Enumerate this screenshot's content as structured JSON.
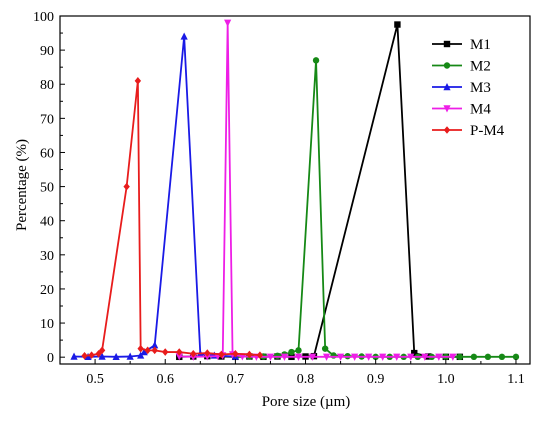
{
  "chart_data": {
    "type": "line",
    "xlabel": "Pore size (µm)",
    "ylabel": "Percentage (%)",
    "xlim": [
      0.45,
      1.12
    ],
    "ylim": [
      -2,
      100
    ],
    "xticks": [
      "0.5",
      "0.6",
      "0.7",
      "0.8",
      "0.9",
      "1.0",
      "1.1"
    ],
    "xtick_values": [
      0.5,
      0.6,
      0.7,
      0.8,
      0.9,
      1.0,
      1.1
    ],
    "yticks": [
      "0",
      "10",
      "20",
      "30",
      "40",
      "50",
      "60",
      "70",
      "80",
      "90",
      "100"
    ],
    "ytick_values": [
      0,
      10,
      20,
      30,
      40,
      50,
      60,
      70,
      80,
      90,
      100
    ],
    "grid": false,
    "legend_position": "top-right",
    "series": [
      {
        "name": "M1",
        "color": "#000000",
        "marker": "square",
        "x": [
          0.62,
          0.64,
          0.66,
          0.68,
          0.7,
          0.72,
          0.74,
          0.76,
          0.78,
          0.8,
          0.812,
          0.931,
          0.955,
          0.975,
          1.0,
          1.02
        ],
        "y": [
          0.1,
          0.2,
          0.3,
          0.2,
          0.1,
          0.2,
          0.1,
          0.2,
          0.1,
          0.2,
          0.3,
          97.5,
          1.2,
          0.2,
          0.1,
          0.1
        ]
      },
      {
        "name": "M2",
        "color": "#168916",
        "marker": "circle",
        "x": [
          0.7,
          0.72,
          0.74,
          0.76,
          0.77,
          0.78,
          0.79,
          0.815,
          0.828,
          0.84,
          0.86,
          0.88,
          0.9,
          0.92,
          0.94,
          0.96,
          0.98,
          1.0,
          1.02,
          1.04,
          1.06,
          1.08,
          1.1
        ],
        "y": [
          0.1,
          0.2,
          0.2,
          0.4,
          0.8,
          1.5,
          2.0,
          87.0,
          2.5,
          0.5,
          0.3,
          0.2,
          0.1,
          0.1,
          0.1,
          0.1,
          0.1,
          0.1,
          0.1,
          0.1,
          0.1,
          0.1,
          0.1
        ]
      },
      {
        "name": "M3",
        "color": "#1a1ae6",
        "marker": "triangle-up",
        "x": [
          0.47,
          0.49,
          0.51,
          0.53,
          0.55,
          0.565,
          0.57,
          0.585,
          0.627,
          0.65,
          0.67,
          0.7
        ],
        "y": [
          0.2,
          0.1,
          0.2,
          0.1,
          0.2,
          0.5,
          1.5,
          3.5,
          94.0,
          1.0,
          0.5,
          0.2
        ]
      },
      {
        "name": "M4",
        "color": "#ee1ee6",
        "marker": "triangle-down",
        "x": [
          0.62,
          0.64,
          0.66,
          0.675,
          0.682,
          0.689,
          0.696,
          0.71,
          0.73,
          0.75,
          0.77,
          0.79,
          0.81,
          0.83,
          0.85,
          0.87,
          0.89,
          0.91,
          0.93,
          0.95,
          0.97,
          0.99,
          1.01
        ],
        "y": [
          0.2,
          0.1,
          0.2,
          0.3,
          0.5,
          98.0,
          0.8,
          0.2,
          0.1,
          0.1,
          0.1,
          0.1,
          0.1,
          0.1,
          0.1,
          0.1,
          0.1,
          0.1,
          0.1,
          0.1,
          0.1,
          0.1,
          0.1
        ]
      },
      {
        "name": "P-M4",
        "color": "#e81c1c",
        "marker": "diamond",
        "x": [
          0.485,
          0.495,
          0.505,
          0.51,
          0.545,
          0.561,
          0.565,
          0.575,
          0.585,
          0.6,
          0.62,
          0.64,
          0.66,
          0.68,
          0.7,
          0.72,
          0.735
        ],
        "y": [
          0.4,
          0.6,
          1.0,
          2.0,
          50.0,
          81.0,
          2.5,
          2.0,
          2.0,
          1.5,
          1.5,
          1.0,
          1.2,
          0.8,
          1.0,
          0.8,
          0.6
        ]
      }
    ]
  }
}
